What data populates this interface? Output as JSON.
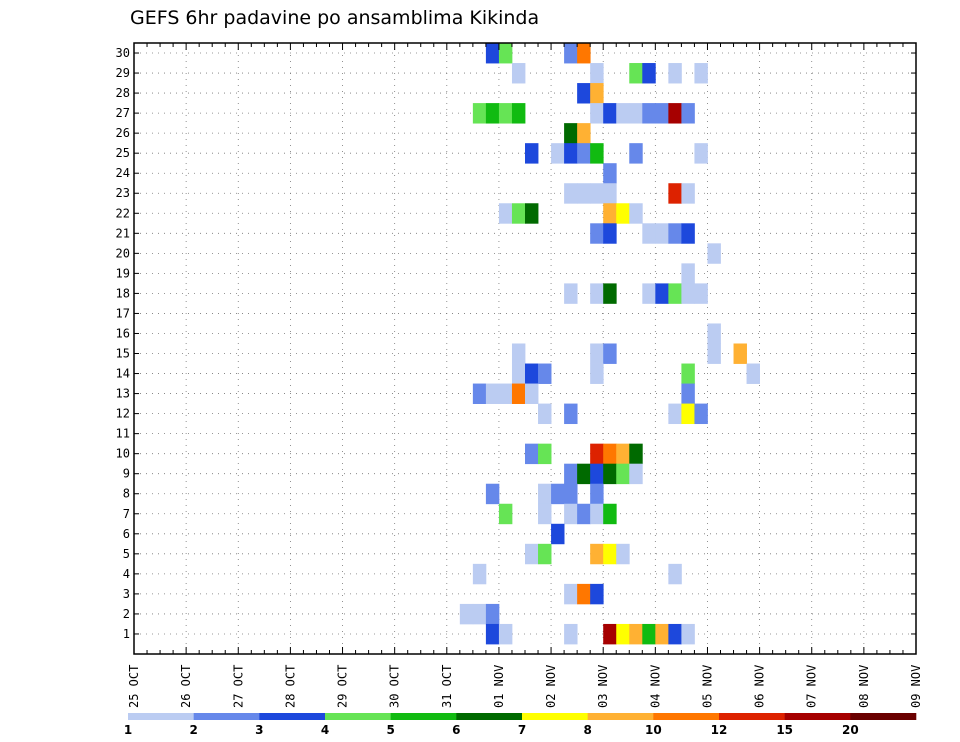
{
  "chart_data": {
    "type": "heatmap",
    "title": "GEFS 6hr padavine po ansamblima Kikinda",
    "xlabel": "",
    "ylabel": "",
    "x_start": "25 OCT 00Z",
    "x_step_hours": 6,
    "x_range_days": 15,
    "x_ticks": [
      "25 OCT",
      "26 OCT",
      "27 OCT",
      "28 OCT",
      "29 OCT",
      "30 OCT",
      "31 OCT",
      "01 NOV",
      "02 NOV",
      "03 NOV",
      "04 NOV",
      "05 NOV",
      "06 NOV",
      "07 NOV",
      "08 NOV",
      "09 NOV"
    ],
    "y_ticks": [
      "1",
      "2",
      "3",
      "4",
      "5",
      "6",
      "7",
      "8",
      "9",
      "10",
      "11",
      "12",
      "13",
      "14",
      "15",
      "16",
      "17",
      "18",
      "19",
      "20",
      "21",
      "22",
      "23",
      "24",
      "25",
      "26",
      "27",
      "28",
      "29",
      "30"
    ],
    "ylim": [
      0,
      30
    ],
    "grid": true,
    "legend": {
      "position": "bottom",
      "colors": [
        "#bbccf2",
        "#6688ea",
        "#1d48dc",
        "#66e455",
        "#11bb11",
        "#006a00",
        "#ffff00",
        "#ffb133",
        "#ff7700",
        "#dd2200",
        "#a60000",
        "#6a0000"
      ],
      "labels": [
        "1",
        "2",
        "3",
        "4",
        "5",
        "6",
        "7",
        "8",
        "10",
        "12",
        "15",
        "20"
      ]
    },
    "cells_note": "each cell: [time_step_index (6h steps from 25 OCT 00Z), member (0 = control row), color_class_index]",
    "cells": [
      [
        27,
        30,
        2
      ],
      [
        28,
        30,
        3
      ],
      [
        33,
        30,
        1
      ],
      [
        34,
        30,
        8
      ],
      [
        29,
        29,
        0
      ],
      [
        35,
        29,
        0
      ],
      [
        38,
        29,
        3
      ],
      [
        39,
        29,
        2
      ],
      [
        41,
        29,
        0
      ],
      [
        43,
        29,
        0
      ],
      [
        34,
        28,
        2
      ],
      [
        35,
        28,
        7
      ],
      [
        26,
        27,
        3
      ],
      [
        27,
        27,
        4
      ],
      [
        28,
        27,
        3
      ],
      [
        29,
        27,
        4
      ],
      [
        35,
        27,
        0
      ],
      [
        36,
        27,
        2
      ],
      [
        37,
        27,
        0
      ],
      [
        38,
        27,
        0
      ],
      [
        39,
        27,
        1
      ],
      [
        40,
        27,
        1
      ],
      [
        41,
        27,
        10
      ],
      [
        42,
        27,
        1
      ],
      [
        33,
        26,
        5
      ],
      [
        34,
        26,
        7
      ],
      [
        30,
        25,
        2
      ],
      [
        32,
        25,
        0
      ],
      [
        33,
        25,
        2
      ],
      [
        34,
        25,
        1
      ],
      [
        35,
        25,
        4
      ],
      [
        38,
        25,
        1
      ],
      [
        43,
        25,
        0
      ],
      [
        36,
        24,
        1
      ],
      [
        33,
        23,
        0
      ],
      [
        34,
        23,
        0
      ],
      [
        35,
        23,
        0
      ],
      [
        36,
        23,
        0
      ],
      [
        41,
        23,
        9
      ],
      [
        42,
        23,
        0
      ],
      [
        28,
        22,
        0
      ],
      [
        29,
        22,
        3
      ],
      [
        30,
        22,
        5
      ],
      [
        36,
        22,
        7
      ],
      [
        37,
        22,
        6
      ],
      [
        38,
        22,
        0
      ],
      [
        35,
        21,
        1
      ],
      [
        36,
        21,
        2
      ],
      [
        39,
        21,
        0
      ],
      [
        40,
        21,
        0
      ],
      [
        41,
        21,
        1
      ],
      [
        42,
        21,
        2
      ],
      [
        44,
        20,
        0
      ],
      [
        42,
        19,
        0
      ],
      [
        33,
        18,
        0
      ],
      [
        35,
        18,
        0
      ],
      [
        36,
        18,
        5
      ],
      [
        39,
        18,
        0
      ],
      [
        40,
        18,
        2
      ],
      [
        41,
        18,
        3
      ],
      [
        42,
        18,
        0
      ],
      [
        43,
        18,
        0
      ],
      [
        44,
        16,
        0
      ],
      [
        29,
        15,
        0
      ],
      [
        35,
        15,
        0
      ],
      [
        36,
        15,
        1
      ],
      [
        44,
        15,
        0
      ],
      [
        46,
        15,
        7
      ],
      [
        29,
        14,
        0
      ],
      [
        30,
        14,
        2
      ],
      [
        31,
        14,
        1
      ],
      [
        35,
        14,
        0
      ],
      [
        42,
        14,
        3
      ],
      [
        47,
        14,
        0
      ],
      [
        26,
        13,
        1
      ],
      [
        27,
        13,
        0
      ],
      [
        28,
        13,
        0
      ],
      [
        29,
        13,
        8
      ],
      [
        30,
        13,
        0
      ],
      [
        42,
        13,
        1
      ],
      [
        31,
        12,
        0
      ],
      [
        33,
        12,
        1
      ],
      [
        41,
        12,
        0
      ],
      [
        42,
        12,
        6
      ],
      [
        43,
        12,
        1
      ],
      [
        30,
        10,
        1
      ],
      [
        31,
        10,
        3
      ],
      [
        35,
        10,
        9
      ],
      [
        36,
        10,
        8
      ],
      [
        37,
        10,
        7
      ],
      [
        38,
        10,
        5
      ],
      [
        33,
        9,
        1
      ],
      [
        34,
        9,
        5
      ],
      [
        35,
        9,
        2
      ],
      [
        36,
        9,
        5
      ],
      [
        37,
        9,
        3
      ],
      [
        38,
        9,
        0
      ],
      [
        27,
        8,
        1
      ],
      [
        31,
        8,
        0
      ],
      [
        32,
        8,
        1
      ],
      [
        33,
        8,
        1
      ],
      [
        35,
        8,
        1
      ],
      [
        28,
        7,
        3
      ],
      [
        31,
        7,
        0
      ],
      [
        33,
        7,
        0
      ],
      [
        34,
        7,
        1
      ],
      [
        35,
        7,
        0
      ],
      [
        36,
        7,
        4
      ],
      [
        32,
        6,
        2
      ],
      [
        30,
        5,
        0
      ],
      [
        31,
        5,
        3
      ],
      [
        35,
        5,
        7
      ],
      [
        36,
        5,
        6
      ],
      [
        37,
        5,
        0
      ],
      [
        26,
        4,
        0
      ],
      [
        41,
        4,
        0
      ],
      [
        33,
        3,
        0
      ],
      [
        34,
        3,
        8
      ],
      [
        35,
        3,
        2
      ],
      [
        25,
        2,
        0
      ],
      [
        26,
        2,
        0
      ],
      [
        27,
        2,
        1
      ],
      [
        27,
        1,
        2
      ],
      [
        28,
        1,
        0
      ],
      [
        33,
        1,
        0
      ],
      [
        36,
        1,
        10
      ],
      [
        37,
        1,
        6
      ],
      [
        38,
        1,
        7
      ],
      [
        39,
        1,
        4
      ],
      [
        40,
        1,
        7
      ],
      [
        41,
        1,
        2
      ],
      [
        42,
        1,
        0
      ]
    ]
  }
}
